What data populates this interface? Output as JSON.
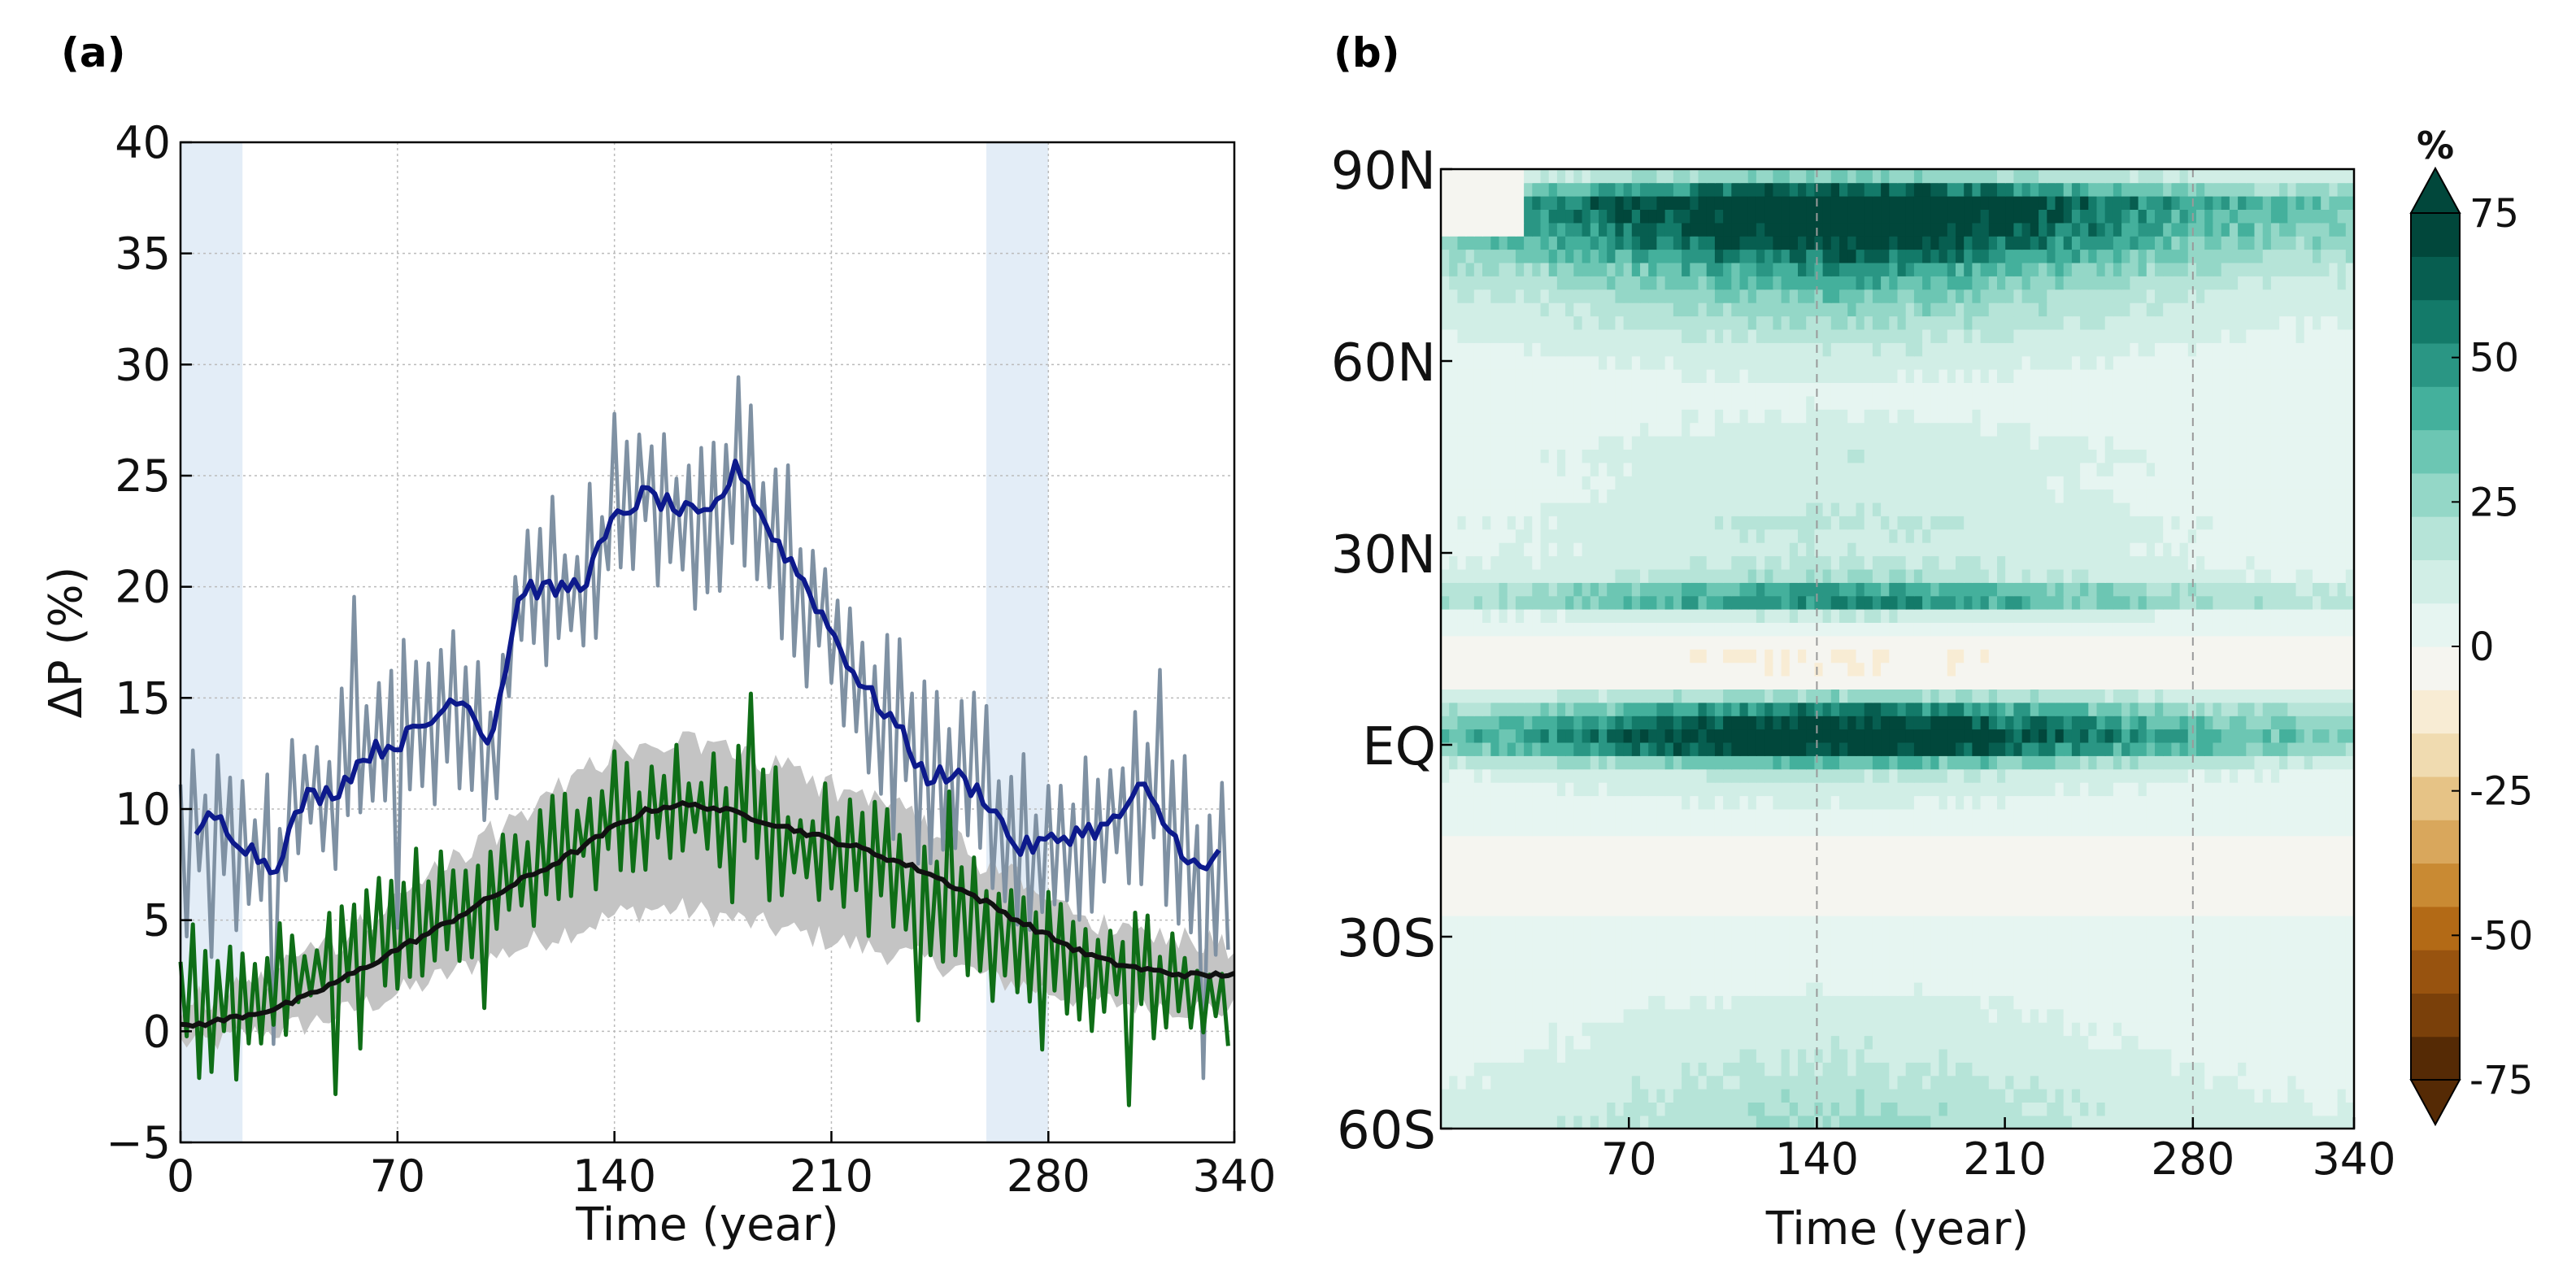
{
  "chart_data": [
    {
      "panel": "(a)",
      "type": "line",
      "xlabel": "Time (year)",
      "ylabel": "ΔP (%)",
      "xlim": [
        0,
        340
      ],
      "ylim": [
        -5,
        40
      ],
      "xticks": [
        0,
        70,
        140,
        210,
        280,
        340
      ],
      "yticks": [
        -5,
        0,
        5,
        10,
        15,
        20,
        25,
        30,
        35,
        40
      ],
      "ytick_labels": [
        "−5",
        "0",
        "5",
        "10",
        "15",
        "20",
        "25",
        "30",
        "35",
        "40"
      ],
      "grid": true,
      "shaded_periods": [
        [
          0,
          20
        ],
        [
          260,
          280
        ]
      ],
      "colors": {
        "annual_series": "#7f91a3",
        "smoothed_series": "#0d1a8c",
        "green_series": "#0f6e17",
        "mean_series": "#111111",
        "spread_band": "#c4c4c4",
        "shaded_period": "#e3edf7"
      },
      "series": [
        {
          "name": "annual series (grey-blue)",
          "style": "thin noisy line",
          "x": [
            0,
            10,
            20,
            30,
            40,
            50,
            60,
            70,
            80,
            90,
            100,
            110,
            120,
            130,
            140,
            150,
            160,
            170,
            180,
            190,
            200,
            210,
            220,
            230,
            240,
            250,
            260,
            270,
            280,
            290,
            300,
            310,
            320,
            330,
            340
          ],
          "center": [
            8.5,
            9.5,
            7.5,
            7.3,
            10.5,
            10.8,
            12.5,
            13.5,
            13.8,
            15.3,
            13.0,
            20.0,
            19.8,
            20.2,
            23.0,
            24.2,
            23.5,
            23.0,
            25.5,
            22.5,
            20.5,
            18.0,
            15.5,
            14.0,
            11.5,
            11.5,
            10.5,
            8.2,
            8.5,
            9.0,
            9.2,
            11.0,
            8.8,
            7.0,
            8.0
          ],
          "amplitude": 4.5
        },
        {
          "name": "smoothed series (dark blue)",
          "style": "thick line",
          "x": [
            5,
            10,
            20,
            30,
            40,
            50,
            60,
            70,
            80,
            90,
            100,
            105,
            110,
            120,
            130,
            140,
            150,
            160,
            170,
            180,
            190,
            200,
            210,
            220,
            230,
            240,
            250,
            260,
            270,
            280,
            290,
            300,
            310,
            320,
            330,
            335
          ],
          "values": [
            8.5,
            9.8,
            8.5,
            7.3,
            10.5,
            10.8,
            12.5,
            13.0,
            13.8,
            15.3,
            13.0,
            16.5,
            20.0,
            19.8,
            20.2,
            23.0,
            24.2,
            23.5,
            23.0,
            25.5,
            22.5,
            20.5,
            18.0,
            15.5,
            14.0,
            11.5,
            11.5,
            10.5,
            8.2,
            8.5,
            9.0,
            9.2,
            11.0,
            8.8,
            7.0,
            8.0
          ]
        },
        {
          "name": "green series",
          "style": "noisy line",
          "x": [
            0,
            10,
            20,
            30,
            40,
            50,
            60,
            70,
            80,
            90,
            100,
            110,
            120,
            130,
            140,
            150,
            160,
            170,
            180,
            190,
            200,
            210,
            220,
            230,
            240,
            250,
            260,
            270,
            280,
            290,
            300,
            310,
            320,
            330,
            340
          ],
          "center": [
            0.5,
            1.0,
            1.5,
            1.8,
            2.5,
            3.0,
            3.8,
            4.5,
            5.2,
            6.0,
            6.8,
            7.5,
            8.0,
            8.8,
            9.5,
            10.0,
            10.5,
            10.0,
            9.5,
            9.0,
            8.5,
            8.0,
            7.5,
            6.8,
            6.0,
            5.2,
            4.5,
            3.8,
            3.2,
            2.8,
            2.5,
            2.3,
            2.0,
            1.8,
            1.5
          ],
          "amplitude": 3.2
        },
        {
          "name": "ensemble mean (black)",
          "style": "thick line",
          "x": [
            0,
            10,
            20,
            30,
            40,
            50,
            60,
            70,
            80,
            90,
            100,
            110,
            120,
            130,
            140,
            150,
            160,
            170,
            180,
            190,
            200,
            210,
            220,
            230,
            240,
            250,
            260,
            270,
            280,
            290,
            300,
            310,
            320,
            330,
            340
          ],
          "values": [
            0.2,
            0.4,
            0.7,
            1.0,
            1.5,
            2.2,
            2.9,
            3.7,
            4.4,
            5.2,
            6.0,
            6.8,
            7.5,
            8.3,
            9.2,
            9.9,
            10.2,
            10.1,
            9.8,
            9.4,
            9.0,
            8.6,
            8.2,
            7.7,
            7.2,
            6.5,
            5.8,
            5.0,
            4.3,
            3.6,
            3.1,
            2.8,
            2.6,
            2.5,
            2.6
          ]
        },
        {
          "name": "ensemble spread (grey band)",
          "style": "filled band",
          "x": [
            0,
            10,
            20,
            30,
            40,
            50,
            60,
            70,
            80,
            90,
            100,
            110,
            120,
            130,
            140,
            150,
            160,
            170,
            180,
            190,
            200,
            210,
            220,
            230,
            240,
            250,
            260,
            270,
            280,
            290,
            300,
            310,
            320,
            330,
            340
          ],
          "lower": [
            -0.5,
            -0.5,
            -0.2,
            0.0,
            0.3,
            0.7,
            1.2,
            1.7,
            2.2,
            2.8,
            3.3,
            3.8,
            4.3,
            4.7,
            5.2,
            5.5,
            5.5,
            5.3,
            5.0,
            4.7,
            4.4,
            4.1,
            3.8,
            3.5,
            3.2,
            2.9,
            2.5,
            2.1,
            1.8,
            1.5,
            1.3,
            1.2,
            1.1,
            1.0,
            1.0
          ],
          "upper": [
            1.2,
            1.5,
            2.0,
            2.5,
            3.2,
            4.0,
            5.0,
            6.0,
            6.8,
            7.8,
            8.8,
            9.8,
            10.8,
            11.8,
            12.6,
            13.0,
            13.2,
            12.8,
            12.5,
            12.0,
            11.5,
            11.0,
            10.5,
            10.0,
            9.2,
            8.5,
            7.5,
            6.8,
            6.0,
            5.3,
            4.8,
            4.4,
            4.1,
            3.9,
            3.8
          ]
        }
      ]
    },
    {
      "panel": "(b)",
      "type": "heatmap",
      "xlabel": "Time (year)",
      "ylabel": "",
      "xlim": [
        0,
        340
      ],
      "ylim": [
        -60,
        90
      ],
      "xticks": [
        70,
        140,
        210,
        280,
        340
      ],
      "yticks": [
        -60,
        -30,
        0,
        30,
        60,
        90
      ],
      "ytick_labels": [
        "60S",
        "30S",
        "EQ",
        "30N",
        "60N",
        "90N"
      ],
      "dashed_reference_years": [
        140,
        280
      ],
      "colorbar": {
        "label": "%",
        "ticks": [
          -75,
          -50,
          -25,
          0,
          25,
          50,
          75
        ],
        "range": [
          -75,
          75
        ],
        "extend": "both",
        "colors": [
          "#552a05",
          "#7a400a",
          "#98530f",
          "#b36a16",
          "#c98a33",
          "#d9a75c",
          "#e6c386",
          "#f0dbb0",
          "#f8ecd4",
          "#f5f5f0",
          "#e6f5f1",
          "#d1eee6",
          "#b6e4d8",
          "#94d7c7",
          "#6cc6b3",
          "#44b09c",
          "#2a9684",
          "#137a69",
          "#075e50",
          "#01473b"
        ]
      },
      "latitudes": [
        -60,
        -50,
        -40,
        -35,
        -30,
        -25,
        -20,
        -15,
        -10,
        -5,
        -2,
        0,
        2,
        5,
        8,
        10,
        13,
        17,
        20,
        23,
        26,
        30,
        35,
        40,
        45,
        50,
        55,
        60,
        65,
        70,
        75,
        80,
        85,
        90
      ],
      "base_change_percent": [
        22,
        14,
        8,
        3,
        2,
        -2,
        -5,
        -2,
        6,
        14,
        40,
        78,
        80,
        55,
        20,
        -4,
        -8,
        -5,
        10,
        55,
        20,
        12,
        14,
        10,
        12,
        8,
        5,
        10,
        18,
        28,
        45,
        72,
        86,
        10
      ],
      "time_envelope": "peaks near year 150, weak at start and end"
    }
  ]
}
